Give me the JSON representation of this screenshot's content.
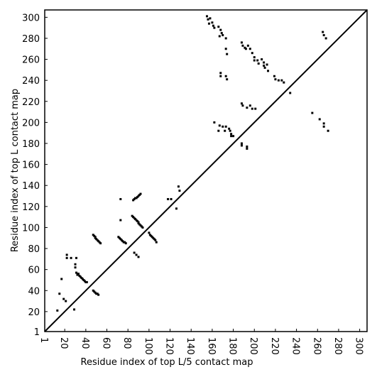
{
  "chart_data": {
    "type": "scatter",
    "xlabel": "Residue index of top L/5 contact map",
    "ylabel": "Residue index of top L contact map",
    "xlim": [
      1,
      307
    ],
    "ylim": [
      1,
      307
    ],
    "xticks": [
      1,
      20,
      40,
      60,
      80,
      100,
      120,
      140,
      160,
      180,
      200,
      220,
      240,
      260,
      280,
      300
    ],
    "yticks": [
      1,
      20,
      40,
      60,
      80,
      100,
      120,
      140,
      160,
      180,
      200,
      220,
      240,
      260,
      280,
      300
    ],
    "diagonal": true,
    "color": "#000000",
    "x": [
      31,
      32,
      33,
      34,
      35,
      36,
      37,
      38,
      39,
      40,
      41,
      47,
      48,
      49,
      49,
      50,
      51,
      52,
      53,
      54,
      47,
      48,
      49,
      50,
      51,
      52,
      71,
      72,
      73,
      74,
      75,
      76,
      77,
      78,
      84,
      85,
      86,
      87,
      88,
      89,
      90,
      90,
      91,
      92,
      93,
      94,
      85,
      86,
      87,
      88,
      89,
      90,
      91,
      92,
      100,
      101,
      102,
      103,
      104,
      105,
      106,
      107,
      13,
      15,
      17,
      19,
      21,
      22,
      22,
      26,
      29,
      30,
      30,
      31,
      73,
      73,
      86,
      88,
      90,
      118,
      121,
      126,
      128,
      129,
      155,
      156,
      157,
      158,
      160,
      161,
      162,
      166,
      168,
      169,
      170,
      167,
      173,
      173,
      174,
      188,
      189,
      191,
      192,
      194,
      196,
      198,
      200,
      200,
      203,
      204,
      207,
      209,
      209,
      210,
      212,
      213,
      219,
      220,
      223,
      226,
      228,
      234,
      168,
      168,
      173,
      174,
      188,
      189,
      193,
      196,
      198,
      201,
      162,
      167,
      170,
      173,
      176,
      177,
      178,
      178,
      180,
      166,
      172,
      188,
      188,
      193,
      193,
      255,
      262,
      266,
      266,
      270,
      265,
      266,
      268
    ],
    "values": [
      57,
      55,
      56,
      54,
      53,
      52,
      51,
      50,
      49,
      48,
      48,
      93,
      92,
      91,
      90,
      89,
      88,
      87,
      86,
      85,
      40,
      39,
      38,
      37,
      37,
      36,
      91,
      90,
      89,
      88,
      87,
      86,
      86,
      85,
      111,
      110,
      109,
      108,
      107,
      106,
      105,
      104,
      103,
      102,
      101,
      100,
      126,
      127,
      128,
      128,
      129,
      130,
      131,
      132,
      95,
      93,
      92,
      91,
      90,
      89,
      88,
      86,
      21,
      37,
      51,
      32,
      30,
      74,
      71,
      71,
      22,
      65,
      62,
      71,
      107,
      127,
      76,
      74,
      72,
      127,
      127,
      118,
      139,
      135,
      301,
      298,
      294,
      299,
      295,
      292,
      290,
      291,
      288,
      285,
      283,
      282,
      280,
      270,
      265,
      276,
      273,
      271,
      270,
      273,
      270,
      266,
      262,
      259,
      259,
      256,
      260,
      257,
      254,
      252,
      255,
      249,
      244,
      241,
      240,
      240,
      238,
      228,
      247,
      244,
      244,
      241,
      218,
      216,
      214,
      216,
      213,
      213,
      200,
      197,
      196,
      196,
      194,
      192,
      189,
      187,
      187,
      192,
      192,
      180,
      178,
      177,
      175,
      209,
      203,
      199,
      196,
      192,
      286,
      283,
      280
    ]
  }
}
